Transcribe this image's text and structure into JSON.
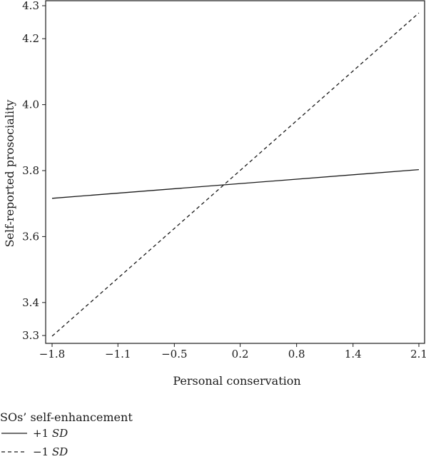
{
  "chart_data": {
    "type": "line",
    "title": "",
    "xlabel": "Personal conservation",
    "ylabel": "Self-reported prosociality",
    "xlim": [
      -1.8,
      2.1
    ],
    "ylim": [
      3.3,
      4.3
    ],
    "x_ticks": [
      -1.8,
      -1.1,
      -0.5,
      0.2,
      0.8,
      1.4,
      2.1
    ],
    "x_tick_labels": [
      "−1.8",
      "−1.1",
      "−0.5",
      "0.2",
      "0.8",
      "1.4",
      "2.1"
    ],
    "y_ticks": [
      3.3,
      3.4,
      3.6,
      3.8,
      4.0,
      4.2,
      4.3
    ],
    "y_tick_labels": [
      "3.3",
      "3.4",
      "3.6",
      "3.8",
      "4.0",
      "4.2",
      "4.3"
    ],
    "grid": false,
    "legend": {
      "title": "SOs’ self-enhancement",
      "placement": "bottom-left",
      "entries": [
        {
          "prefix": "+1 ",
          "emph": "SD",
          "line_style": "solid"
        },
        {
          "prefix": "−1 ",
          "emph": "SD",
          "line_style": "dashed"
        }
      ]
    },
    "series": [
      {
        "line_style": "solid",
        "color": "#1a1a1a",
        "x": [
          -1.8,
          2.1
        ],
        "y": [
          3.716,
          3.803
        ]
      },
      {
        "line_style": "dashed",
        "color": "#1a1a1a",
        "x": [
          -1.8,
          2.1
        ],
        "y": [
          3.298,
          4.278
        ]
      }
    ]
  }
}
